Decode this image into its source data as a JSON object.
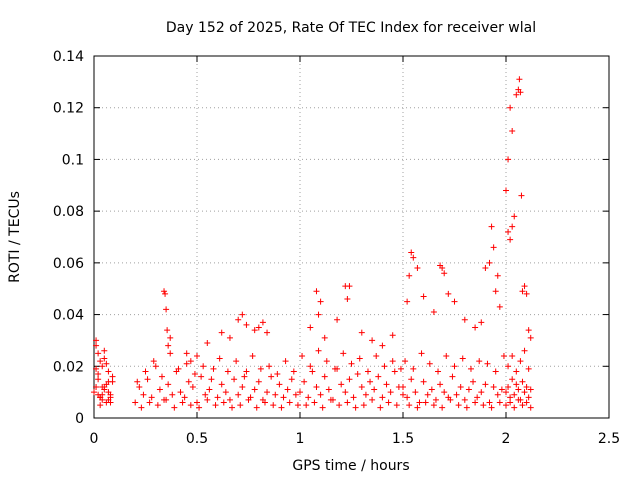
{
  "chart_data": {
    "type": "scatter",
    "title": "Day 152 of 2025, Rate Of TEC Index for receiver wlal",
    "xlabel": "GPS time / hours",
    "ylabel": "ROTI / TECUs",
    "xlim": [
      0,
      2.5
    ],
    "ylim": [
      0,
      0.14
    ],
    "grid": true,
    "marker": "+",
    "color": "#ff0000",
    "x_ticks": [
      0,
      0.5,
      1,
      1.5,
      2,
      2.5
    ],
    "x_tick_labels": [
      "0",
      "0.5",
      "1",
      "1.5",
      "2",
      "2.5"
    ],
    "y_ticks": [
      0,
      0.02,
      0.04,
      0.06,
      0.08,
      0.1,
      0.12,
      0.14
    ],
    "y_tick_labels": [
      "0",
      "0.02",
      "0.04",
      "0.06",
      "0.08",
      "0.1",
      "0.12",
      "0.14"
    ],
    "series": [
      {
        "name": "ROTI",
        "x": [
          0.0,
          0.01,
          0.02,
          0.03,
          0.04,
          0.05,
          0.06,
          0.07,
          0.08,
          0.09,
          0.01,
          0.03,
          0.05,
          0.07,
          0.09,
          0.02,
          0.04,
          0.06,
          0.08,
          0.01,
          0.03,
          0.05,
          0.07,
          0.02,
          0.04,
          0.06,
          0.08,
          0.03,
          0.05,
          0.07,
          0.01,
          0.02,
          0.04,
          0.2,
          0.22,
          0.24,
          0.26,
          0.28,
          0.3,
          0.32,
          0.34,
          0.36,
          0.38,
          0.4,
          0.42,
          0.44,
          0.46,
          0.48,
          0.5,
          0.52,
          0.54,
          0.56,
          0.58,
          0.6,
          0.62,
          0.64,
          0.66,
          0.68,
          0.7,
          0.72,
          0.74,
          0.76,
          0.78,
          0.8,
          0.82,
          0.84,
          0.86,
          0.88,
          0.9,
          0.92,
          0.94,
          0.96,
          0.98,
          0.21,
          0.25,
          0.29,
          0.33,
          0.37,
          0.41,
          0.45,
          0.49,
          0.53,
          0.57,
          0.61,
          0.65,
          0.69,
          0.73,
          0.77,
          0.81,
          0.85,
          0.89,
          0.93,
          0.97,
          0.23,
          0.27,
          0.31,
          0.35,
          0.39,
          0.43,
          0.47,
          0.51,
          0.55,
          0.59,
          0.63,
          0.67,
          0.71,
          0.75,
          0.79,
          0.83,
          0.87,
          0.91,
          0.95,
          0.99,
          0.34,
          0.345,
          0.35,
          0.355,
          0.36,
          0.37,
          0.45,
          0.47,
          0.5,
          0.55,
          0.62,
          0.66,
          0.7,
          0.72,
          0.74,
          0.78,
          0.8,
          0.82,
          0.84,
          1.0,
          1.02,
          1.04,
          1.06,
          1.08,
          1.1,
          1.12,
          1.14,
          1.16,
          1.18,
          1.2,
          1.22,
          1.24,
          1.26,
          1.28,
          1.3,
          1.32,
          1.34,
          1.36,
          1.38,
          1.4,
          1.42,
          1.44,
          1.46,
          1.48,
          1.5,
          1.01,
          1.05,
          1.09,
          1.13,
          1.17,
          1.21,
          1.25,
          1.29,
          1.33,
          1.37,
          1.41,
          1.45,
          1.49,
          1.03,
          1.07,
          1.11,
          1.15,
          1.19,
          1.23,
          1.27,
          1.31,
          1.35,
          1.39,
          1.43,
          1.47,
          1.05,
          1.08,
          1.09,
          1.1,
          1.12,
          1.18,
          1.22,
          1.23,
          1.24,
          1.3,
          1.35,
          1.4,
          1.45,
          1.5,
          1.52,
          1.54,
          1.56,
          1.58,
          1.6,
          1.62,
          1.64,
          1.66,
          1.68,
          1.7,
          1.72,
          1.74,
          1.76,
          1.78,
          1.8,
          1.82,
          1.84,
          1.86,
          1.88,
          1.9,
          1.92,
          1.94,
          1.96,
          1.98,
          1.51,
          1.55,
          1.59,
          1.63,
          1.67,
          1.71,
          1.75,
          1.79,
          1.83,
          1.87,
          1.91,
          1.95,
          1.99,
          1.53,
          1.57,
          1.61,
          1.65,
          1.69,
          1.73,
          1.77,
          1.81,
          1.85,
          1.89,
          1.93,
          1.97,
          1.52,
          1.53,
          1.54,
          1.55,
          1.57,
          1.6,
          1.65,
          1.68,
          1.69,
          1.7,
          1.72,
          1.75,
          1.8,
          1.85,
          1.88,
          1.9,
          1.92,
          1.93,
          1.94,
          1.95,
          1.96,
          1.97,
          2.0,
          2.01,
          2.02,
          2.03,
          2.04,
          2.05,
          2.06,
          2.07,
          2.08,
          2.09,
          2.1,
          2.11,
          2.12,
          2.0,
          2.02,
          2.04,
          2.06,
          2.08,
          2.1,
          2.12,
          2.01,
          2.03,
          2.05,
          2.07,
          2.09,
          2.11,
          2.0,
          2.01,
          2.02,
          2.03,
          2.04,
          2.05,
          2.06,
          2.065,
          2.07,
          2.075,
          2.08,
          2.09,
          2.1,
          2.11,
          2.12,
          2.03,
          2.02,
          2.01
        ],
        "y": [
          0.01,
          0.028,
          0.015,
          0.008,
          0.02,
          0.012,
          0.006,
          0.018,
          0.009,
          0.014,
          0.03,
          0.022,
          0.011,
          0.007,
          0.016,
          0.025,
          0.009,
          0.013,
          0.006,
          0.019,
          0.008,
          0.026,
          0.01,
          0.017,
          0.012,
          0.021,
          0.008,
          0.005,
          0.023,
          0.014,
          0.012,
          0.009,
          0.007,
          0.006,
          0.012,
          0.009,
          0.015,
          0.008,
          0.02,
          0.011,
          0.007,
          0.013,
          0.009,
          0.018,
          0.01,
          0.008,
          0.014,
          0.012,
          0.006,
          0.016,
          0.009,
          0.011,
          0.019,
          0.008,
          0.013,
          0.01,
          0.007,
          0.015,
          0.009,
          0.012,
          0.018,
          0.008,
          0.011,
          0.014,
          0.007,
          0.01,
          0.016,
          0.009,
          0.013,
          0.008,
          0.011,
          0.015,
          0.009,
          0.014,
          0.018,
          0.022,
          0.016,
          0.025,
          0.019,
          0.021,
          0.017,
          0.02,
          0.015,
          0.023,
          0.018,
          0.022,
          0.016,
          0.024,
          0.019,
          0.02,
          0.017,
          0.022,
          0.018,
          0.004,
          0.006,
          0.005,
          0.007,
          0.004,
          0.006,
          0.005,
          0.004,
          0.007,
          0.005,
          0.006,
          0.004,
          0.005,
          0.007,
          0.004,
          0.006,
          0.005,
          0.004,
          0.006,
          0.005,
          0.049,
          0.048,
          0.042,
          0.034,
          0.028,
          0.031,
          0.025,
          0.022,
          0.024,
          0.029,
          0.033,
          0.031,
          0.038,
          0.04,
          0.036,
          0.034,
          0.035,
          0.037,
          0.033,
          0.01,
          0.014,
          0.008,
          0.018,
          0.012,
          0.009,
          0.016,
          0.011,
          0.007,
          0.019,
          0.013,
          0.01,
          0.015,
          0.008,
          0.017,
          0.012,
          0.009,
          0.014,
          0.011,
          0.016,
          0.008,
          0.013,
          0.01,
          0.018,
          0.012,
          0.009,
          0.024,
          0.02,
          0.026,
          0.022,
          0.019,
          0.025,
          0.021,
          0.023,
          0.018,
          0.024,
          0.02,
          0.022,
          0.019,
          0.005,
          0.006,
          0.004,
          0.007,
          0.005,
          0.006,
          0.004,
          0.005,
          0.007,
          0.004,
          0.006,
          0.005,
          0.035,
          0.049,
          0.04,
          0.045,
          0.031,
          0.038,
          0.051,
          0.046,
          0.051,
          0.033,
          0.03,
          0.028,
          0.032,
          0.012,
          0.008,
          0.015,
          0.01,
          0.006,
          0.014,
          0.009,
          0.011,
          0.007,
          0.013,
          0.01,
          0.008,
          0.016,
          0.009,
          0.012,
          0.007,
          0.011,
          0.014,
          0.008,
          0.01,
          0.013,
          0.006,
          0.012,
          0.009,
          0.011,
          0.022,
          0.019,
          0.025,
          0.021,
          0.018,
          0.024,
          0.02,
          0.023,
          0.019,
          0.022,
          0.021,
          0.018,
          0.024,
          0.005,
          0.004,
          0.006,
          0.005,
          0.004,
          0.007,
          0.005,
          0.004,
          0.006,
          0.005,
          0.004,
          0.006,
          0.045,
          0.055,
          0.064,
          0.062,
          0.058,
          0.047,
          0.041,
          0.059,
          0.058,
          0.056,
          0.048,
          0.045,
          0.038,
          0.035,
          0.037,
          0.058,
          0.06,
          0.074,
          0.066,
          0.049,
          0.055,
          0.043,
          0.01,
          0.012,
          0.008,
          0.015,
          0.009,
          0.013,
          0.011,
          0.007,
          0.014,
          0.01,
          0.012,
          0.008,
          0.011,
          0.005,
          0.006,
          0.004,
          0.007,
          0.005,
          0.006,
          0.004,
          0.02,
          0.024,
          0.018,
          0.022,
          0.026,
          0.019,
          0.088,
          0.1,
          0.12,
          0.111,
          0.078,
          0.125,
          0.127,
          0.131,
          0.126,
          0.086,
          0.049,
          0.051,
          0.048,
          0.034,
          0.031,
          0.074,
          0.069,
          0.072
        ]
      }
    ]
  }
}
